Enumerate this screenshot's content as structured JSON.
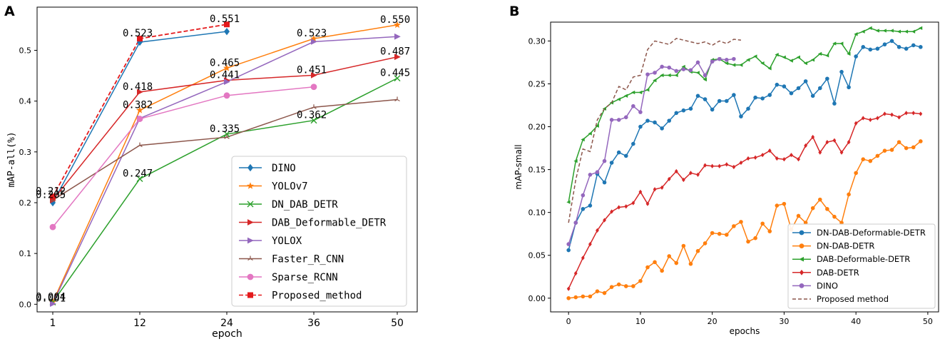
{
  "chart_data": [
    {
      "type": "line",
      "panel_label": "A",
      "xlabel": "epoch",
      "ylabel": "mAP-all(%)",
      "x_categories": [
        "1",
        "12",
        "24",
        "36",
        "50"
      ],
      "yticks": [
        "0.0",
        "0.1",
        "0.2",
        "0.3",
        "0.4",
        "0.5"
      ],
      "ylim": [
        -0.015,
        0.585
      ],
      "legend_position": "lower-right",
      "series": [
        {
          "name": "DINO",
          "color": "#1f77b4",
          "marker": "diamond",
          "dashed": false,
          "values": [
            0.2,
            0.516,
            0.537,
            null,
            null
          ]
        },
        {
          "name": "YOLOv7",
          "color": "#ff7f0e",
          "marker": "star",
          "dashed": false,
          "values": [
            0.004,
            0.382,
            0.465,
            0.523,
            0.55
          ]
        },
        {
          "name": "DN_DAB_DETR",
          "color": "#2ca02c",
          "marker": "x",
          "dashed": false,
          "values": [
            0.004,
            0.247,
            0.335,
            0.362,
            0.445
          ]
        },
        {
          "name": "DAB_Deformable_DETR",
          "color": "#d62728",
          "marker": "triangle-right",
          "dashed": false,
          "values": [
            0.205,
            0.418,
            0.441,
            0.451,
            0.487
          ]
        },
        {
          "name": "YOLOX",
          "color": "#9467bd",
          "marker": "triangle-right",
          "dashed": false,
          "values": [
            0.001,
            0.366,
            0.438,
            0.517,
            0.527
          ]
        },
        {
          "name": "Faster_R_CNN",
          "color": "#8c564b",
          "marker": "tri",
          "dashed": false,
          "values": [
            0.205,
            0.313,
            0.329,
            0.388,
            0.403
          ]
        },
        {
          "name": "Sparse_RCNN",
          "color": "#e377c2",
          "marker": "circle",
          "dashed": false,
          "values": [
            0.152,
            0.365,
            0.411,
            0.428,
            null
          ]
        },
        {
          "name": "Proposed_method",
          "color": "#e41a1c",
          "marker": "square",
          "dashed": true,
          "values": [
            0.212,
            0.523,
            0.551,
            null,
            null
          ]
        }
      ],
      "annotations": [
        {
          "text": "0.212",
          "xi": 0,
          "y": 0.212
        },
        {
          "text": "0.205",
          "xi": 0,
          "y": 0.205
        },
        {
          "text": "0.004",
          "xi": 0,
          "y": 0.004
        },
        {
          "text": "0.001",
          "xi": 0,
          "y": 0.001
        },
        {
          "text": "0.523",
          "xi": 1,
          "y": 0.523
        },
        {
          "text": "0.418",
          "xi": 1,
          "y": 0.418
        },
        {
          "text": "0.382",
          "xi": 1,
          "y": 0.382
        },
        {
          "text": "0.247",
          "xi": 1,
          "y": 0.247
        },
        {
          "text": "0.551",
          "xi": 2,
          "y": 0.551
        },
        {
          "text": "0.465",
          "xi": 2,
          "y": 0.465
        },
        {
          "text": "0.441",
          "xi": 2,
          "y": 0.441
        },
        {
          "text": "0.335",
          "xi": 2,
          "y": 0.335
        },
        {
          "text": "0.523",
          "xi": 3,
          "y": 0.523
        },
        {
          "text": "0.451",
          "xi": 3,
          "y": 0.451
        },
        {
          "text": "0.362",
          "xi": 3,
          "y": 0.362
        },
        {
          "text": "0.550",
          "xi": 4,
          "y": 0.55
        },
        {
          "text": "0.487",
          "xi": 4,
          "y": 0.487
        },
        {
          "text": "0.445",
          "xi": 4,
          "y": 0.445
        }
      ]
    },
    {
      "type": "line",
      "panel_label": "B",
      "xlabel": "epochs",
      "ylabel": "mAP-small",
      "xticks": [
        0,
        10,
        20,
        30,
        40,
        50
      ],
      "yticks": [
        "0.00",
        "0.05",
        "0.10",
        "0.15",
        "0.20",
        "0.25",
        "0.30"
      ],
      "xlim": [
        -2.5,
        51.5
      ],
      "ylim": [
        -0.016,
        0.322
      ],
      "legend_position": "lower-right",
      "series": [
        {
          "name": "DN-DAB-Deformable-DETR",
          "color": "#1f77b4",
          "marker": "circle",
          "dashed": false,
          "values": [
            0.056,
            0.088,
            0.104,
            0.108,
            0.145,
            0.135,
            0.158,
            0.17,
            0.166,
            0.18,
            0.2,
            0.207,
            0.205,
            0.198,
            0.207,
            0.216,
            0.219,
            0.221,
            0.236,
            0.232,
            0.22,
            0.23,
            0.23,
            0.237,
            0.212,
            0.221,
            0.234,
            0.233,
            0.237,
            0.249,
            0.247,
            0.239,
            0.245,
            0.253,
            0.236,
            0.245,
            0.256,
            0.227,
            0.264,
            0.246,
            0.282,
            0.293,
            0.29,
            0.291,
            0.296,
            0.3,
            0.293,
            0.291,
            0.295,
            0.293
          ]
        },
        {
          "name": "DN-DAB-DETR",
          "color": "#ff7f0e",
          "marker": "circle",
          "dashed": false,
          "values": [
            0.0,
            0.001,
            0.002,
            0.002,
            0.008,
            0.006,
            0.013,
            0.016,
            0.014,
            0.014,
            0.02,
            0.036,
            0.042,
            0.032,
            0.049,
            0.041,
            0.061,
            0.04,
            0.055,
            0.064,
            0.076,
            0.075,
            0.074,
            0.084,
            0.089,
            0.066,
            0.07,
            0.087,
            0.078,
            0.108,
            0.11,
            0.08,
            0.096,
            0.088,
            0.105,
            0.115,
            0.104,
            0.095,
            0.088,
            0.121,
            0.146,
            0.162,
            0.16,
            0.166,
            0.172,
            0.173,
            0.182,
            0.175,
            0.176,
            0.183
          ]
        },
        {
          "name": "DAB-Deformable-DETR",
          "color": "#2ca02c",
          "marker": "triangle-left",
          "dashed": false,
          "values": [
            0.112,
            0.16,
            0.185,
            0.192,
            0.201,
            0.221,
            0.228,
            0.232,
            0.236,
            0.24,
            0.24,
            0.243,
            0.254,
            0.26,
            0.26,
            0.26,
            0.27,
            0.264,
            0.263,
            0.255,
            0.278,
            0.279,
            0.274,
            0.272,
            0.272,
            0.278,
            0.282,
            0.274,
            0.268,
            0.284,
            0.281,
            0.277,
            0.281,
            0.274,
            0.278,
            0.285,
            0.283,
            0.297,
            0.297,
            0.285,
            0.308,
            0.311,
            0.315,
            0.312,
            0.312,
            0.312,
            0.311,
            0.311,
            0.311,
            0.315
          ]
        },
        {
          "name": "DAB-DETR",
          "color": "#d62728",
          "marker": "diamond",
          "dashed": false,
          "values": [
            0.011,
            0.029,
            0.047,
            0.063,
            0.079,
            0.091,
            0.101,
            0.106,
            0.107,
            0.111,
            0.124,
            0.11,
            0.127,
            0.129,
            0.139,
            0.148,
            0.138,
            0.146,
            0.144,
            0.155,
            0.154,
            0.154,
            0.156,
            0.153,
            0.158,
            0.163,
            0.164,
            0.167,
            0.172,
            0.163,
            0.162,
            0.167,
            0.162,
            0.178,
            0.188,
            0.17,
            0.182,
            0.184,
            0.17,
            0.182,
            0.204,
            0.21,
            0.208,
            0.21,
            0.215,
            0.214,
            0.211,
            0.216,
            0.216,
            0.215
          ]
        },
        {
          "name": "DINO",
          "color": "#9467bd",
          "marker": "circle",
          "dashed": false,
          "values": [
            0.063,
            0.088,
            0.12,
            0.144,
            0.147,
            0.16,
            0.208,
            0.208,
            0.211,
            0.224,
            0.217,
            0.261,
            0.263,
            0.27,
            0.269,
            0.265,
            0.267,
            0.266,
            0.275,
            0.26,
            0.276,
            0.279,
            0.278,
            0.279
          ]
        },
        {
          "name": "Proposed method",
          "color": "#8c564b",
          "marker": "none",
          "dashed": true,
          "values": [
            0.088,
            0.138,
            0.174,
            0.171,
            0.208,
            0.221,
            0.228,
            0.247,
            0.243,
            0.258,
            0.26,
            0.29,
            0.3,
            0.298,
            0.296,
            0.303,
            0.301,
            0.299,
            0.297,
            0.299,
            0.295,
            0.3,
            0.297,
            0.302,
            0.301
          ]
        }
      ]
    }
  ]
}
